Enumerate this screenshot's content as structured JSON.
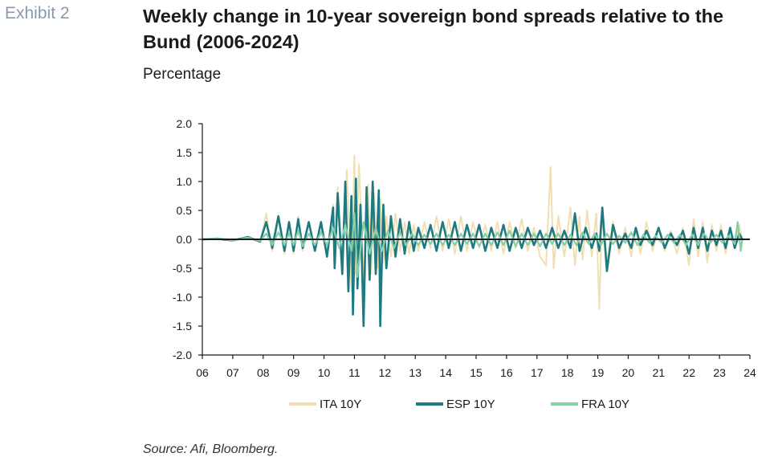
{
  "exhibit_label": "Exhibit 2",
  "title": "Weekly change in 10-year sovereign bond spreads relative to the Bund (2006-2024)",
  "subtitle": "Percentage",
  "source": "Source: Afi, Bloomberg.",
  "chart_data": {
    "type": "line",
    "title": "Weekly change in 10-year sovereign bond spreads relative to the Bund (2006-2024)",
    "ylabel": "Percentage",
    "xlabel": "",
    "ylim": [
      -2.0,
      2.0
    ],
    "xlim": [
      2006,
      2024
    ],
    "y_ticks": [
      2.0,
      1.5,
      1.0,
      0.5,
      0.0,
      -0.5,
      -1.0,
      -1.5,
      -2.0
    ],
    "y_tick_labels": [
      "2.0",
      "1.5",
      "1.0",
      "0.5",
      "0.0",
      "-0.5",
      "-1.0",
      "-1.5",
      "-2.0"
    ],
    "x_ticks": [
      2006,
      2007,
      2008,
      2009,
      2010,
      2011,
      2012,
      2013,
      2014,
      2015,
      2016,
      2017,
      2018,
      2019,
      2020,
      2021,
      2022,
      2023,
      2024
    ],
    "x_tick_labels": [
      "06",
      "07",
      "08",
      "09",
      "10",
      "11",
      "12",
      "13",
      "14",
      "15",
      "16",
      "17",
      "18",
      "19",
      "20",
      "21",
      "22",
      "23",
      "24"
    ],
    "grid": false,
    "legend_position": "bottom",
    "series": [
      {
        "name": "ITA 10Y",
        "color": "#f0dfb4",
        "x": [
          2006.0,
          2006.5,
          2007.0,
          2007.5,
          2007.9,
          2008.1,
          2008.3,
          2008.5,
          2008.7,
          2008.85,
          2009.0,
          2009.15,
          2009.3,
          2009.5,
          2009.7,
          2009.9,
          2010.1,
          2010.3,
          2010.35,
          2010.45,
          2010.6,
          2010.75,
          2010.9,
          2011.0,
          2011.05,
          2011.15,
          2011.3,
          2011.45,
          2011.55,
          2011.65,
          2011.75,
          2011.85,
          2011.95,
          2012.05,
          2012.2,
          2012.35,
          2012.5,
          2012.65,
          2012.8,
          2012.95,
          2013.1,
          2013.3,
          2013.5,
          2013.7,
          2013.9,
          2014.1,
          2014.3,
          2014.5,
          2014.7,
          2014.9,
          2015.1,
          2015.3,
          2015.5,
          2015.7,
          2015.9,
          2016.1,
          2016.3,
          2016.5,
          2016.7,
          2016.9,
          2017.1,
          2017.3,
          2017.45,
          2017.55,
          2017.7,
          2017.9,
          2018.1,
          2018.25,
          2018.4,
          2018.5,
          2018.65,
          2018.8,
          2018.95,
          2019.05,
          2019.15,
          2019.3,
          2019.5,
          2019.7,
          2019.9,
          2020.1,
          2020.25,
          2020.4,
          2020.6,
          2020.8,
          2021.0,
          2021.2,
          2021.4,
          2021.6,
          2021.8,
          2022.0,
          2022.15,
          2022.3,
          2022.45,
          2022.6,
          2022.75,
          2022.9,
          2023.05,
          2023.2,
          2023.35,
          2023.5,
          2023.65,
          2023.75
        ],
        "y": [
          0.0,
          0.02,
          -0.03,
          0.05,
          -0.05,
          0.45,
          -0.2,
          0.35,
          -0.25,
          0.3,
          -0.25,
          0.4,
          -0.2,
          0.3,
          -0.15,
          0.25,
          -0.3,
          0.6,
          -0.5,
          0.9,
          -0.6,
          1.2,
          -0.9,
          1.45,
          -0.6,
          1.3,
          -0.7,
          0.95,
          -0.6,
          0.8,
          -0.5,
          0.7,
          -0.4,
          0.4,
          -0.3,
          0.45,
          -0.2,
          0.3,
          -0.25,
          0.25,
          -0.2,
          0.3,
          -0.15,
          0.4,
          -0.2,
          0.35,
          -0.25,
          0.4,
          -0.2,
          0.3,
          -0.15,
          0.25,
          -0.2,
          0.3,
          -0.25,
          0.3,
          -0.15,
          0.35,
          -0.2,
          0.2,
          -0.3,
          -0.45,
          1.25,
          -0.5,
          0.4,
          -0.3,
          0.55,
          -0.45,
          0.4,
          -0.35,
          0.5,
          -0.3,
          0.45,
          -1.2,
          0.55,
          -0.4,
          0.3,
          -0.25,
          0.2,
          -0.3,
          0.2,
          -0.25,
          0.3,
          -0.2,
          0.2,
          -0.2,
          0.15,
          -0.25,
          0.2,
          -0.45,
          0.35,
          -0.3,
          0.3,
          -0.4,
          0.25,
          -0.2,
          0.25,
          -0.25,
          0.2,
          -0.15,
          0.25,
          0.0
        ]
      },
      {
        "name": "ESP 10Y",
        "color": "#1c7a80",
        "x": [
          2006.0,
          2006.5,
          2007.0,
          2007.5,
          2007.9,
          2008.1,
          2008.3,
          2008.5,
          2008.7,
          2008.85,
          2009.0,
          2009.15,
          2009.3,
          2009.5,
          2009.7,
          2009.9,
          2010.1,
          2010.3,
          2010.35,
          2010.45,
          2010.6,
          2010.7,
          2010.8,
          2010.9,
          2010.95,
          2011.05,
          2011.1,
          2011.2,
          2011.3,
          2011.4,
          2011.5,
          2011.6,
          2011.7,
          2011.8,
          2011.85,
          2011.95,
          2012.05,
          2012.2,
          2012.35,
          2012.5,
          2012.65,
          2012.8,
          2012.95,
          2013.1,
          2013.3,
          2013.5,
          2013.7,
          2013.9,
          2014.1,
          2014.3,
          2014.5,
          2014.7,
          2014.9,
          2015.1,
          2015.3,
          2015.5,
          2015.7,
          2015.9,
          2016.1,
          2016.3,
          2016.5,
          2016.7,
          2016.9,
          2017.1,
          2017.3,
          2017.5,
          2017.7,
          2017.9,
          2018.1,
          2018.25,
          2018.4,
          2018.6,
          2018.8,
          2018.95,
          2019.05,
          2019.15,
          2019.3,
          2019.5,
          2019.7,
          2019.9,
          2020.1,
          2020.25,
          2020.4,
          2020.6,
          2020.8,
          2021.0,
          2021.2,
          2021.4,
          2021.6,
          2021.8,
          2022.0,
          2022.15,
          2022.3,
          2022.45,
          2022.6,
          2022.75,
          2022.9,
          2023.05,
          2023.2,
          2023.35,
          2023.5,
          2023.65,
          2023.75
        ],
        "y": [
          0.0,
          0.01,
          -0.02,
          0.04,
          -0.04,
          0.3,
          -0.15,
          0.4,
          -0.2,
          0.3,
          -0.2,
          0.35,
          -0.15,
          0.3,
          -0.2,
          0.3,
          -0.3,
          0.55,
          -0.5,
          0.8,
          -0.6,
          1.0,
          -0.9,
          0.75,
          -1.3,
          1.05,
          -0.85,
          0.6,
          -1.5,
          0.9,
          -0.7,
          1.0,
          -0.6,
          0.85,
          -1.5,
          0.6,
          -0.5,
          0.4,
          -0.3,
          0.35,
          -0.25,
          0.3,
          -0.2,
          0.2,
          -0.15,
          0.25,
          -0.2,
          0.3,
          -0.15,
          0.3,
          -0.2,
          0.25,
          -0.15,
          0.25,
          -0.2,
          0.2,
          -0.15,
          0.25,
          -0.2,
          0.2,
          -0.15,
          0.2,
          -0.1,
          0.15,
          -0.15,
          0.2,
          -0.15,
          0.15,
          -0.15,
          0.45,
          -0.2,
          0.2,
          -0.15,
          0.1,
          -0.2,
          0.55,
          -0.55,
          0.25,
          -0.15,
          0.1,
          -0.15,
          0.2,
          -0.1,
          0.15,
          -0.1,
          0.2,
          -0.15,
          0.1,
          -0.1,
          0.15,
          -0.25,
          0.2,
          -0.15,
          0.2,
          -0.2,
          0.15,
          -0.1,
          0.15,
          -0.15,
          0.2,
          -0.15,
          0.1,
          0.0
        ]
      },
      {
        "name": "FRA 10Y",
        "color": "#86cfa8",
        "x": [
          2006.0,
          2006.5,
          2007.0,
          2007.5,
          2007.9,
          2008.1,
          2008.3,
          2008.5,
          2008.7,
          2008.85,
          2009.0,
          2009.15,
          2009.3,
          2009.5,
          2009.7,
          2009.9,
          2010.1,
          2010.3,
          2010.5,
          2010.7,
          2010.9,
          2011.0,
          2011.1,
          2011.3,
          2011.5,
          2011.7,
          2011.9,
          2012.1,
          2012.3,
          2012.5,
          2012.7,
          2012.9,
          2013.1,
          2013.3,
          2013.5,
          2013.7,
          2013.9,
          2014.1,
          2014.3,
          2014.5,
          2014.7,
          2014.9,
          2015.1,
          2015.3,
          2015.5,
          2015.7,
          2015.9,
          2016.1,
          2016.3,
          2016.5,
          2016.7,
          2016.9,
          2017.1,
          2017.3,
          2017.5,
          2017.7,
          2017.9,
          2018.1,
          2018.3,
          2018.5,
          2018.7,
          2018.9,
          2019.1,
          2019.3,
          2019.5,
          2019.7,
          2019.9,
          2020.1,
          2020.3,
          2020.5,
          2020.7,
          2020.9,
          2021.1,
          2021.3,
          2021.5,
          2021.7,
          2021.9,
          2022.1,
          2022.3,
          2022.5,
          2022.7,
          2022.9,
          2023.1,
          2023.3,
          2023.5,
          2023.6,
          2023.7,
          2023.75
        ],
        "y": [
          0.0,
          0.02,
          -0.02,
          0.03,
          -0.03,
          0.1,
          -0.1,
          0.12,
          -0.1,
          0.1,
          -0.1,
          0.15,
          -0.12,
          0.1,
          -0.1,
          0.12,
          -0.1,
          0.2,
          -0.15,
          0.25,
          -0.2,
          0.45,
          -0.65,
          0.3,
          -0.25,
          0.2,
          -0.2,
          0.15,
          -0.15,
          0.12,
          -0.1,
          0.1,
          -0.1,
          0.08,
          -0.08,
          0.1,
          -0.1,
          0.08,
          -0.1,
          0.1,
          -0.08,
          0.1,
          -0.12,
          0.1,
          -0.1,
          0.12,
          -0.1,
          0.15,
          -0.12,
          0.1,
          -0.1,
          0.1,
          -0.12,
          0.1,
          -0.08,
          0.1,
          -0.1,
          0.08,
          -0.1,
          0.12,
          -0.08,
          0.1,
          -0.1,
          0.1,
          -0.08,
          0.06,
          -0.06,
          0.12,
          -0.1,
          0.08,
          -0.06,
          0.06,
          -0.06,
          0.08,
          -0.06,
          0.08,
          -0.1,
          0.08,
          -0.1,
          0.1,
          -0.06,
          0.08,
          -0.06,
          0.06,
          -0.08,
          0.3,
          -0.2,
          0.0
        ]
      }
    ]
  }
}
